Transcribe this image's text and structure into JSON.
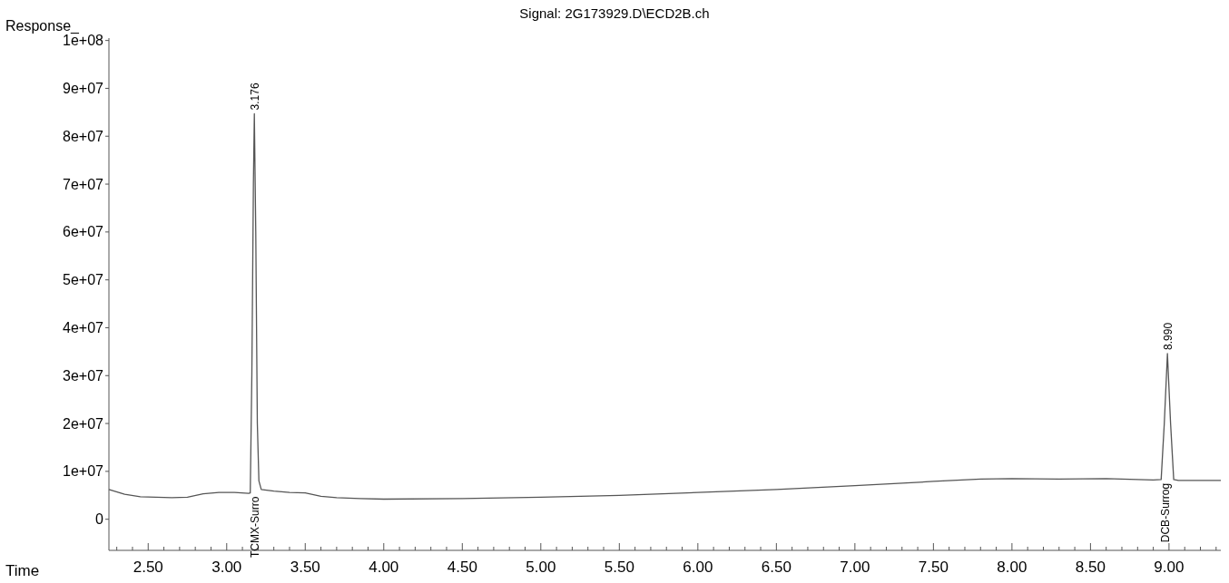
{
  "chart_data": {
    "type": "line",
    "title": "Signal: 2G173929.D\\ECD2B.ch",
    "xlabel": "Time",
    "ylabel": "Response_",
    "x": [
      2.25,
      2.35,
      2.45,
      2.55,
      2.65,
      2.75,
      2.85,
      2.95,
      3.05,
      3.14,
      3.15,
      3.16,
      3.17,
      3.176,
      3.185,
      3.195,
      3.205,
      3.22,
      3.3,
      3.4,
      3.5,
      3.6,
      3.7,
      3.85,
      4.0,
      4.5,
      5.0,
      5.5,
      6.0,
      6.5,
      7.0,
      7.5,
      7.8,
      8.0,
      8.3,
      8.6,
      8.9,
      8.95,
      8.97,
      8.99,
      9.01,
      9.03,
      9.06,
      9.2,
      9.33
    ],
    "series": [
      {
        "color": "#555555",
        "values": [
          6200000,
          5200000,
          4700000,
          4600000,
          4500000,
          4600000,
          5300000,
          5600000,
          5600000,
          5400000,
          5500000,
          30000000,
          70000000,
          84700000,
          60000000,
          20000000,
          8000000,
          6200000,
          5900000,
          5600000,
          5500000,
          4800000,
          4500000,
          4300000,
          4200000,
          4300000,
          4600000,
          5000000,
          5600000,
          6200000,
          7000000,
          7900000,
          8400000,
          8500000,
          8400000,
          8500000,
          8200000,
          8300000,
          20000000,
          34600000,
          20000000,
          8300000,
          8100000,
          8100000,
          8100000
        ]
      }
    ],
    "xlim": [
      2.25,
      9.33
    ],
    "ylim": [
      -6500000,
      100500000
    ],
    "xticks": [
      {
        "value": 2.3,
        "label": null
      },
      {
        "value": 2.4,
        "label": null
      },
      {
        "value": 2.5,
        "label": "2.50"
      },
      {
        "value": 2.6,
        "label": null
      },
      {
        "value": 2.7,
        "label": null
      },
      {
        "value": 2.8,
        "label": null
      },
      {
        "value": 2.9,
        "label": null
      },
      {
        "value": 3.0,
        "label": "3.00"
      },
      {
        "value": 3.1,
        "label": null
      },
      {
        "value": 3.2,
        "label": null
      },
      {
        "value": 3.3,
        "label": null
      },
      {
        "value": 3.4,
        "label": null
      },
      {
        "value": 3.5,
        "label": "3.50"
      },
      {
        "value": 3.6,
        "label": null
      },
      {
        "value": 3.7,
        "label": null
      },
      {
        "value": 3.8,
        "label": null
      },
      {
        "value": 3.9,
        "label": null
      },
      {
        "value": 4.0,
        "label": "4.00"
      },
      {
        "value": 4.1,
        "label": null
      },
      {
        "value": 4.2,
        "label": null
      },
      {
        "value": 4.3,
        "label": null
      },
      {
        "value": 4.4,
        "label": null
      },
      {
        "value": 4.5,
        "label": "4.50"
      },
      {
        "value": 4.6,
        "label": null
      },
      {
        "value": 4.7,
        "label": null
      },
      {
        "value": 4.8,
        "label": null
      },
      {
        "value": 4.9,
        "label": null
      },
      {
        "value": 5.0,
        "label": "5.00"
      },
      {
        "value": 5.1,
        "label": null
      },
      {
        "value": 5.2,
        "label": null
      },
      {
        "value": 5.3,
        "label": null
      },
      {
        "value": 5.4,
        "label": null
      },
      {
        "value": 5.5,
        "label": "5.50"
      },
      {
        "value": 5.6,
        "label": null
      },
      {
        "value": 5.7,
        "label": null
      },
      {
        "value": 5.8,
        "label": null
      },
      {
        "value": 5.9,
        "label": null
      },
      {
        "value": 6.0,
        "label": "6.00"
      },
      {
        "value": 6.1,
        "label": null
      },
      {
        "value": 6.2,
        "label": null
      },
      {
        "value": 6.3,
        "label": null
      },
      {
        "value": 6.4,
        "label": null
      },
      {
        "value": 6.5,
        "label": "6.50"
      },
      {
        "value": 6.6,
        "label": null
      },
      {
        "value": 6.7,
        "label": null
      },
      {
        "value": 6.8,
        "label": null
      },
      {
        "value": 6.9,
        "label": null
      },
      {
        "value": 7.0,
        "label": "7.00"
      },
      {
        "value": 7.1,
        "label": null
      },
      {
        "value": 7.2,
        "label": null
      },
      {
        "value": 7.3,
        "label": null
      },
      {
        "value": 7.4,
        "label": null
      },
      {
        "value": 7.5,
        "label": "7.50"
      },
      {
        "value": 7.6,
        "label": null
      },
      {
        "value": 7.7,
        "label": null
      },
      {
        "value": 7.8,
        "label": null
      },
      {
        "value": 7.9,
        "label": null
      },
      {
        "value": 8.0,
        "label": "8.00"
      },
      {
        "value": 8.1,
        "label": null
      },
      {
        "value": 8.2,
        "label": null
      },
      {
        "value": 8.3,
        "label": null
      },
      {
        "value": 8.4,
        "label": null
      },
      {
        "value": 8.5,
        "label": "8.50"
      },
      {
        "value": 8.6,
        "label": null
      },
      {
        "value": 8.7,
        "label": null
      },
      {
        "value": 8.8,
        "label": null
      },
      {
        "value": 8.9,
        "label": null
      },
      {
        "value": 9.0,
        "label": "9.00"
      },
      {
        "value": 9.1,
        "label": null
      },
      {
        "value": 9.2,
        "label": null
      },
      {
        "value": 9.3,
        "label": null
      }
    ],
    "yticks": [
      {
        "value": 0,
        "label": "0"
      },
      {
        "value": 10000000,
        "label": "1e+07"
      },
      {
        "value": 20000000,
        "label": "2e+07"
      },
      {
        "value": 30000000,
        "label": "3e+07"
      },
      {
        "value": 40000000,
        "label": "4e+07"
      },
      {
        "value": 50000000,
        "label": "5e+07"
      },
      {
        "value": 60000000,
        "label": "6e+07"
      },
      {
        "value": 70000000,
        "label": "7e+07"
      },
      {
        "value": 80000000,
        "label": "8e+07"
      },
      {
        "value": 90000000,
        "label": "9e+07"
      },
      {
        "value": 100000000,
        "label": "1e+08"
      }
    ],
    "annotations": [
      {
        "text": "3.176",
        "x": 3.176,
        "y": 84700000
      },
      {
        "text": "TCMX-Surro",
        "x": 3.15,
        "y": 5500000
      },
      {
        "text": "8.990",
        "x": 8.99,
        "y": 34600000
      },
      {
        "text": "DCB-Surrog",
        "x": 8.95,
        "y": 8300000
      }
    ],
    "grid": false,
    "marker": "none",
    "line_style": "solid"
  }
}
